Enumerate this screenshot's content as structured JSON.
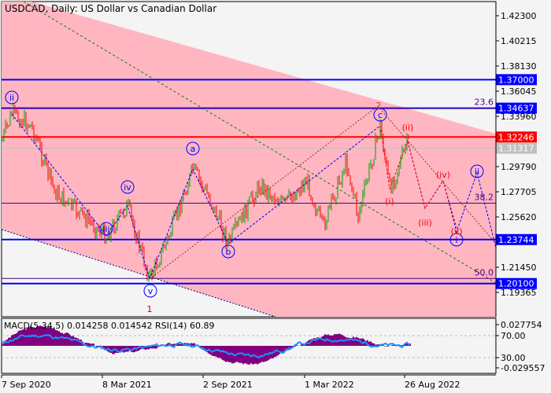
{
  "title": "USDCAD, Daily:  US Dollar vs Canadian Dollar",
  "price_axis": [
    "1.42300",
    "1.40215",
    "1.38130",
    "1.36045",
    "1.33960",
    "1.29790",
    "1.27705",
    "1.25620",
    "1.21450",
    "1.19365"
  ],
  "levels": [
    {
      "label": "1.37000",
      "value": 1.37,
      "color": "#0000ff"
    },
    {
      "label": "1.34637",
      "value": 1.34637,
      "color": "#0000ff"
    },
    {
      "label": "1.32246",
      "value": 1.32246,
      "color": "#ff0000"
    },
    {
      "label": "1.23744",
      "value": 1.23744,
      "color": "#0000ff"
    },
    {
      "label": "1.20100",
      "value": 1.201,
      "color": "#0000ff"
    }
  ],
  "current_price": {
    "label": "1.31317",
    "value": 1.31317,
    "color": "#c0c0c0"
  },
  "fib": [
    {
      "label": "23.6",
      "value": 1.34637
    },
    {
      "label": "38.2",
      "value": 1.2676
    },
    {
      "label": "50.0",
      "value": 1.2052
    }
  ],
  "waves": {
    "blue": [
      "ii",
      "iii",
      "iv",
      "v",
      "a",
      "b",
      "c",
      "i",
      "ii"
    ],
    "red": [
      "(i)",
      "(ii)",
      "(iii)",
      "(iv)",
      "(v)"
    ],
    "brown": [
      "1",
      "2"
    ]
  },
  "indicator": {
    "label": "MACD(5,34,5) 0.014258 0.014542 RSI(14) 60.89",
    "axis": [
      "0.027754",
      "70.00",
      "30.00",
      "-0.029557"
    ]
  },
  "dates": [
    "7 Sep 2020",
    "8 Mar 2021",
    "2 Sep 2021",
    "1 Mar 2022",
    "26 Aug 2022"
  ],
  "colors": {
    "channel": "#ffb6c1",
    "up": "#00a000",
    "down": "#ff0000",
    "macd": "#800080",
    "rsi": "#1e90ff"
  }
}
